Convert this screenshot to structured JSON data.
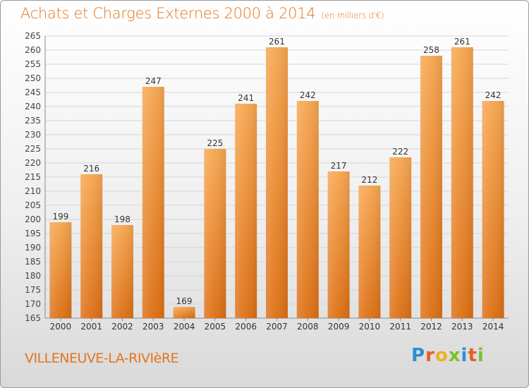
{
  "header": {
    "title": "Achats et Charges Externes 2000 à 2014",
    "subtitle": "(en milliers d'€)"
  },
  "footer": {
    "city": "VILLENEUVE-LA-RIVIèRE",
    "logo_text": "Proxiti",
    "logo_icon": "proxiti-logo"
  },
  "colors": {
    "bar_top": "#f6a650",
    "bar_bottom": "#dd6f14",
    "accent": "#e3751f",
    "grid": "#d6d6d6"
  },
  "chart_data": {
    "type": "bar",
    "title": "Achats et Charges Externes 2000 à 2014",
    "subtitle": "(en milliers d'€)",
    "xlabel": "",
    "ylabel": "",
    "categories": [
      "2000",
      "2001",
      "2002",
      "2003",
      "2004",
      "2005",
      "2006",
      "2007",
      "2008",
      "2009",
      "2010",
      "2011",
      "2012",
      "2013",
      "2014"
    ],
    "values": [
      199,
      216,
      198,
      247,
      169,
      225,
      241,
      261,
      242,
      217,
      212,
      222,
      258,
      261,
      242
    ],
    "ylim": [
      165,
      265
    ],
    "yticks": [
      165,
      170,
      175,
      180,
      185,
      190,
      195,
      200,
      205,
      210,
      215,
      220,
      225,
      230,
      235,
      240,
      245,
      250,
      255,
      260,
      265
    ],
    "grid": true,
    "data_labels": true
  }
}
